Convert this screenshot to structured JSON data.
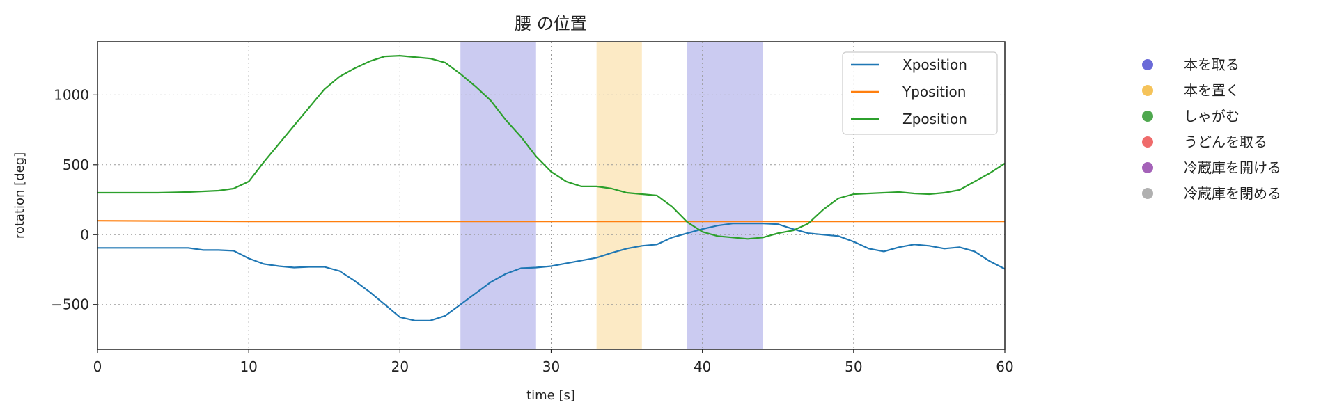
{
  "chart_data": {
    "type": "line",
    "title": "腰 の位置",
    "xlabel": "time [s]",
    "ylabel": "rotation [deg]",
    "xlim": [
      0,
      60
    ],
    "ylim": [
      -820,
      1380
    ],
    "xticks": [
      0,
      10,
      20,
      30,
      40,
      50,
      60
    ],
    "yticks": [
      -500,
      0,
      500,
      1000
    ],
    "xtick_labels": [
      "0",
      "10",
      "20",
      "30",
      "40",
      "50",
      "60"
    ],
    "ytick_labels": [
      "−500",
      "0",
      "500",
      "1000"
    ],
    "grid": true,
    "legend_position": "top-right",
    "series": [
      {
        "name": "Xposition",
        "color": "#1f77b4",
        "x": [
          0,
          2,
          4,
          6,
          7,
          8,
          9,
          10,
          11,
          12,
          13,
          14,
          15,
          16,
          17,
          18,
          19,
          20,
          21,
          22,
          23,
          24,
          25,
          26,
          27,
          28,
          29,
          30,
          31,
          32,
          33,
          34,
          35,
          36,
          37,
          38,
          39,
          40,
          41,
          42,
          43,
          44,
          45,
          46,
          47,
          48,
          49,
          50,
          51,
          52,
          53,
          54,
          55,
          56,
          57,
          58,
          59,
          60
        ],
        "y": [
          -95,
          -95,
          -95,
          -95,
          -110,
          -110,
          -115,
          -170,
          -210,
          -225,
          -235,
          -230,
          -230,
          -260,
          -330,
          -410,
          -500,
          -590,
          -615,
          -615,
          -580,
          -500,
          -420,
          -340,
          -280,
          -240,
          -235,
          -225,
          -205,
          -185,
          -165,
          -130,
          -100,
          -80,
          -70,
          -20,
          10,
          40,
          65,
          80,
          80,
          80,
          75,
          40,
          10,
          0,
          -10,
          -50,
          -100,
          -120,
          -90,
          -70,
          -80,
          -100,
          -90,
          -120,
          -190,
          -245
        ]
      },
      {
        "name": "Yposition",
        "color": "#ff7f0e",
        "x": [
          0,
          10,
          20,
          30,
          40,
          50,
          60
        ],
        "y": [
          100,
          95,
          95,
          95,
          95,
          95,
          95
        ]
      },
      {
        "name": "Zposition",
        "color": "#2ca02c",
        "x": [
          0,
          2,
          4,
          6,
          8,
          9,
          10,
          11,
          12,
          13,
          14,
          15,
          16,
          17,
          18,
          19,
          20,
          21,
          22,
          23,
          24,
          25,
          26,
          27,
          28,
          29,
          30,
          31,
          32,
          33,
          34,
          35,
          36,
          37,
          38,
          39,
          40,
          41,
          42,
          43,
          44,
          45,
          46,
          47,
          48,
          49,
          50,
          51,
          52,
          53,
          54,
          55,
          56,
          57,
          58,
          59,
          60
        ],
        "y": [
          300,
          300,
          300,
          305,
          315,
          330,
          380,
          520,
          650,
          780,
          910,
          1040,
          1130,
          1190,
          1240,
          1275,
          1280,
          1270,
          1260,
          1230,
          1150,
          1060,
          960,
          820,
          700,
          560,
          450,
          380,
          345,
          345,
          330,
          300,
          290,
          280,
          200,
          90,
          20,
          -10,
          -20,
          -30,
          -20,
          10,
          30,
          80,
          180,
          260,
          290,
          295,
          300,
          305,
          295,
          290,
          300,
          320,
          380,
          440,
          510
        ]
      }
    ],
    "spans": [
      {
        "x0": 24,
        "x1": 29,
        "color": "#6a6ad8"
      },
      {
        "x0": 33,
        "x1": 36,
        "color": "#f5c35a"
      },
      {
        "x0": 39,
        "x1": 44,
        "color": "#6a6ad8"
      }
    ],
    "span_legend": [
      {
        "label": "本を取る",
        "color": "#6a6ad8"
      },
      {
        "label": "本を置く",
        "color": "#f5c35a"
      },
      {
        "label": "しゃがむ",
        "color": "#4fa84f"
      },
      {
        "label": "うどんを取る",
        "color": "#ef6b6b"
      },
      {
        "label": "冷蔵庫を開ける",
        "color": "#a462b8"
      },
      {
        "label": "冷蔵庫を閉める",
        "color": "#b0b0b0"
      }
    ]
  }
}
